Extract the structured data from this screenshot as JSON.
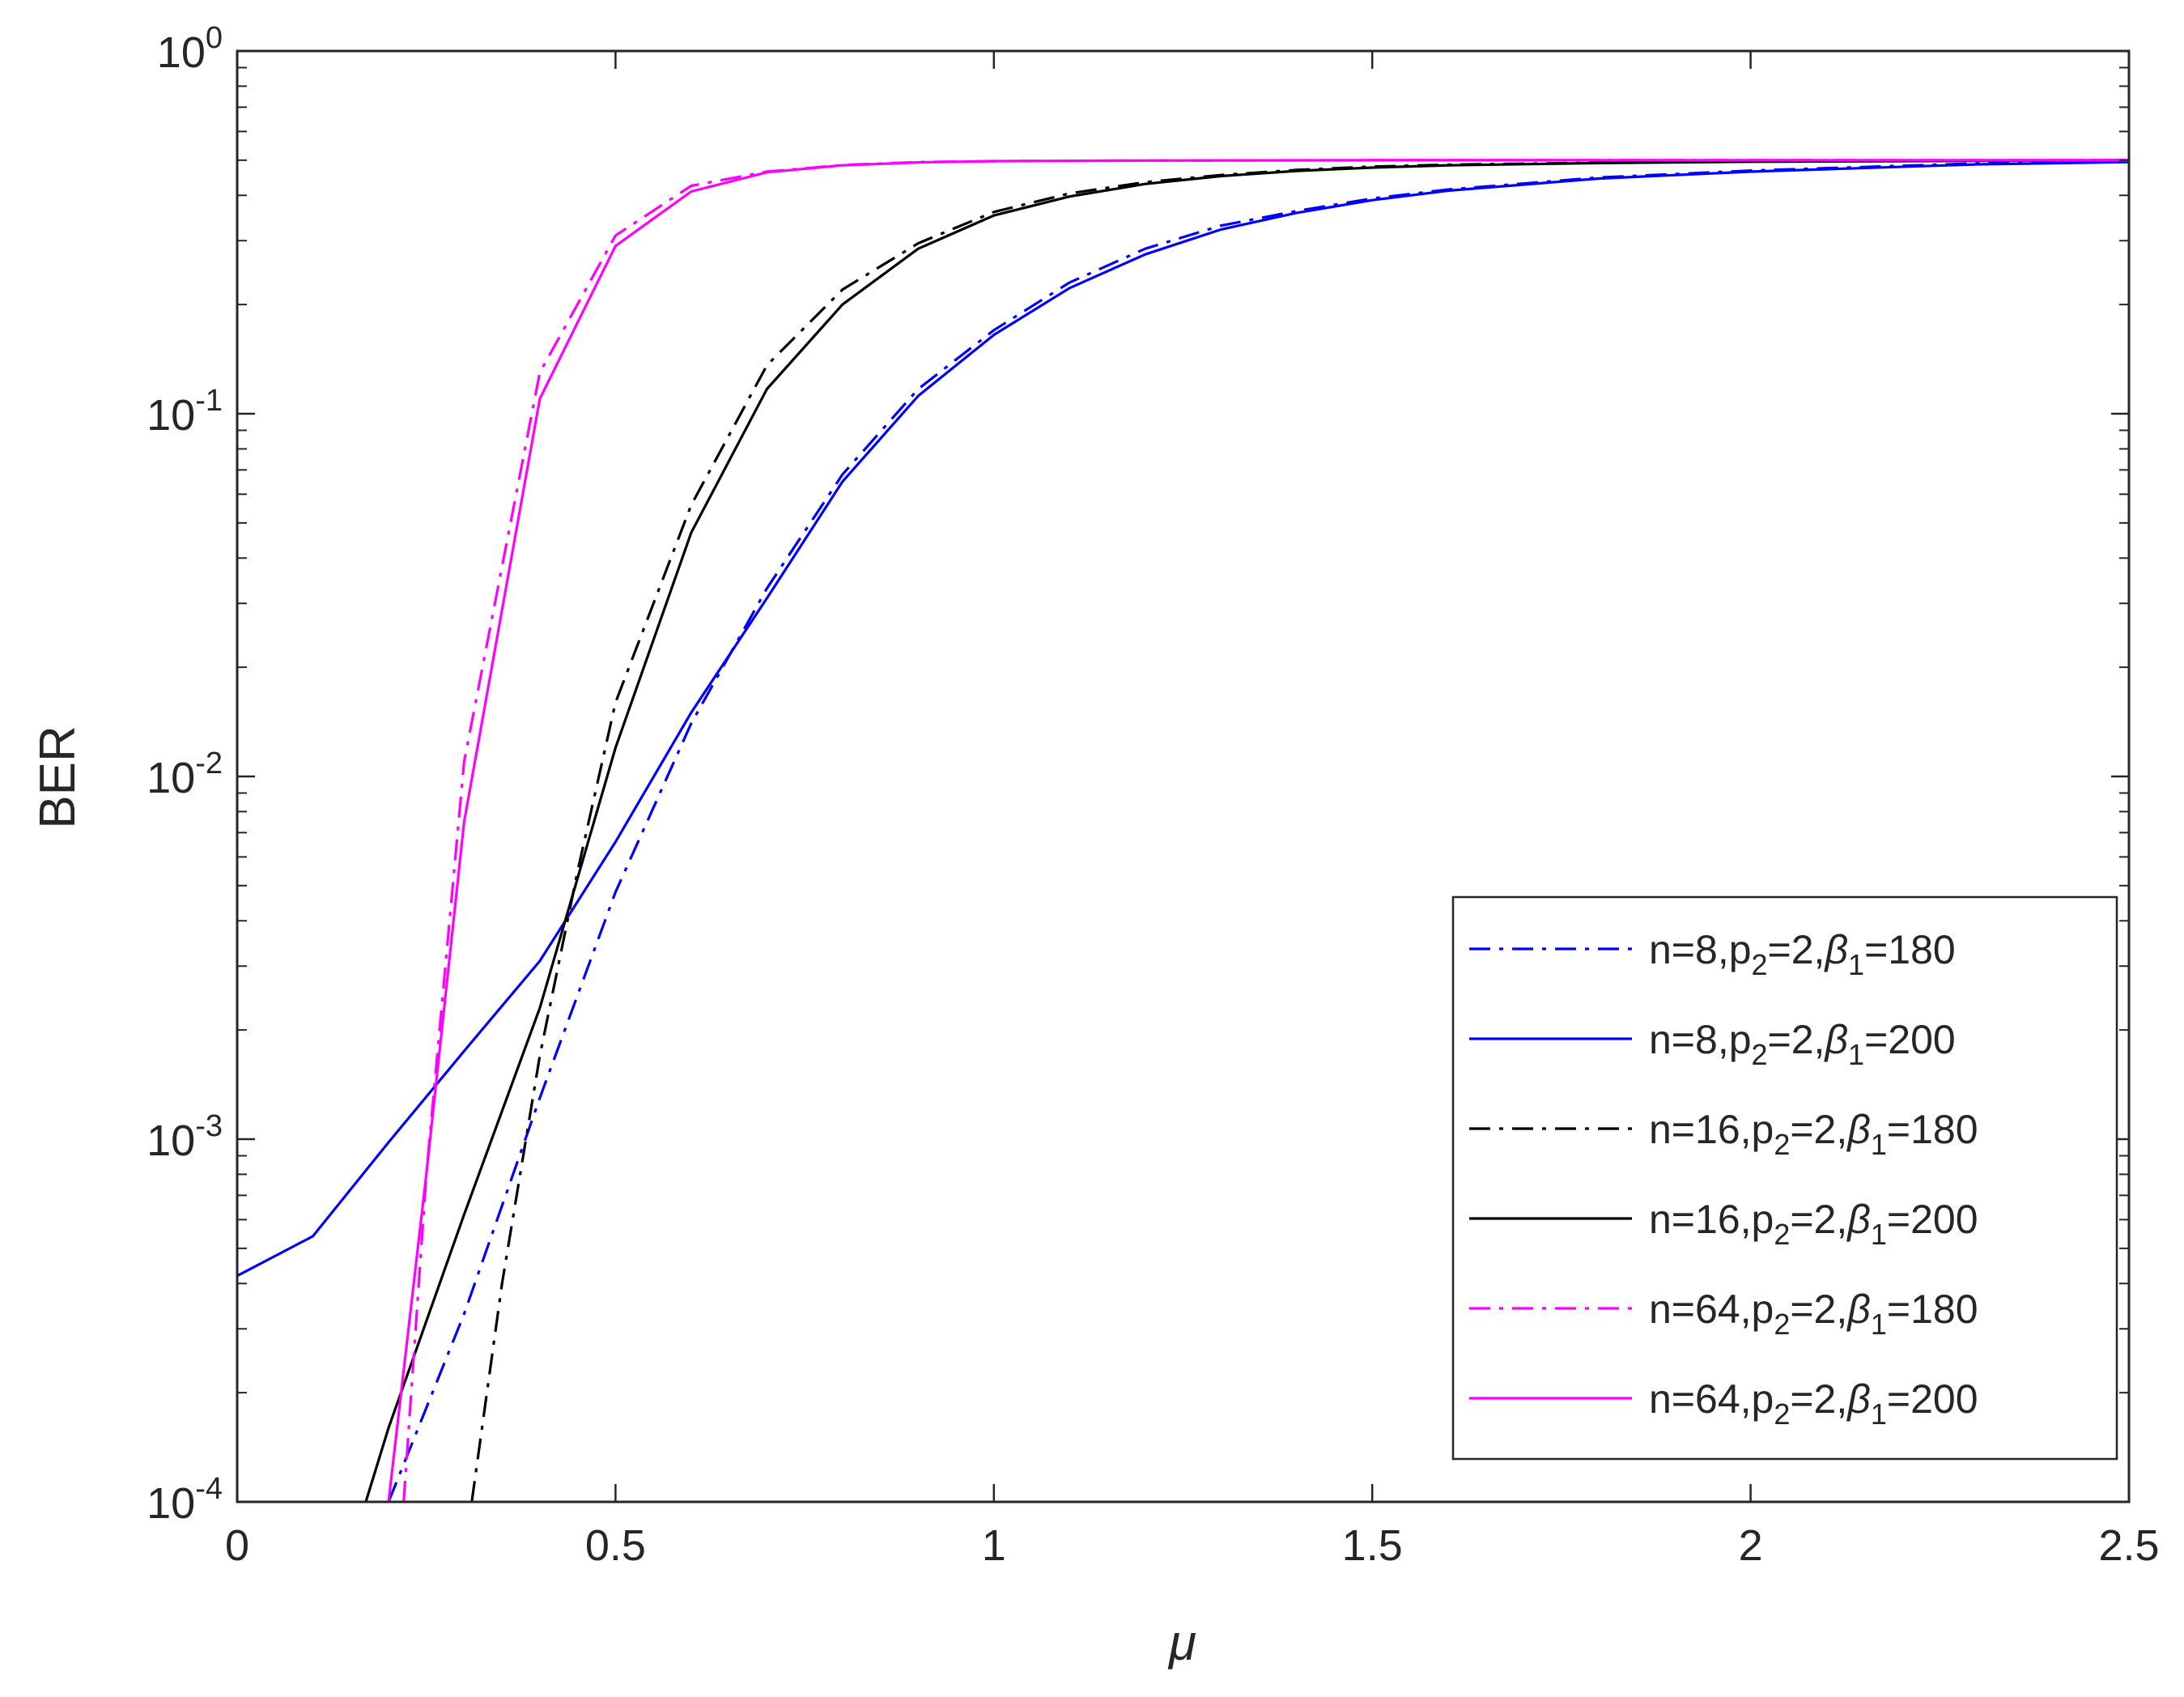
{
  "chart_data": {
    "type": "line",
    "xlabel": "μ",
    "ylabel": "BER",
    "xlim": [
      0,
      2.5
    ],
    "ylim": [
      0.0001,
      1
    ],
    "yscale": "log",
    "grid": false,
    "legend_position": "lower-right",
    "x_ticks": [
      0,
      0.5,
      1,
      1.5,
      2,
      2.5
    ],
    "x_tick_labels": [
      "0",
      "0.5",
      "1",
      "1.5",
      "2",
      "2.5"
    ],
    "y_ticks": [
      {
        "value": 0.0001,
        "base": "10",
        "exp": "-4"
      },
      {
        "value": 0.001,
        "base": "10",
        "exp": "-3"
      },
      {
        "value": 0.01,
        "base": "10",
        "exp": "-2"
      },
      {
        "value": 0.1,
        "base": "10",
        "exp": "-1"
      },
      {
        "value": 1,
        "base": "10",
        "exp": "0"
      }
    ],
    "series": [
      {
        "legend": {
          "pre": "n=8,p",
          "sub1": "2",
          "mid": "=2,",
          "beta": "β",
          "sub2": "1",
          "post": "=180"
        },
        "color": "#0000ff",
        "dash": "dashdot",
        "x": [
          0.2,
          0.3,
          0.4,
          0.5,
          0.6,
          0.7,
          0.8,
          0.9,
          1.0,
          1.1,
          1.2,
          1.3,
          1.4,
          1.5,
          1.6,
          1.8,
          2.0,
          2.3,
          2.5
        ],
        "y": [
          0.0001,
          0.00033,
          0.0013,
          0.0048,
          0.014,
          0.033,
          0.068,
          0.117,
          0.17,
          0.23,
          0.285,
          0.33,
          0.362,
          0.392,
          0.415,
          0.448,
          0.468,
          0.49,
          0.497
        ]
      },
      {
        "legend": {
          "pre": "n=8,p",
          "sub1": "2",
          "mid": "=2,",
          "beta": "β",
          "sub2": "1",
          "post": "=200"
        },
        "color": "#0000ff",
        "dash": "solid",
        "x": [
          0,
          0.1,
          0.2,
          0.3,
          0.4,
          0.5,
          0.6,
          0.7,
          0.8,
          0.9,
          1.0,
          1.1,
          1.2,
          1.3,
          1.4,
          1.5,
          1.6,
          1.8,
          2.0,
          2.3,
          2.5
        ],
        "y": [
          0.00042,
          0.00054,
          0.00098,
          0.00175,
          0.0031,
          0.0066,
          0.015,
          0.031,
          0.065,
          0.112,
          0.165,
          0.222,
          0.275,
          0.322,
          0.358,
          0.388,
          0.412,
          0.445,
          0.465,
          0.487,
          0.494
        ]
      },
      {
        "legend": {
          "pre": "n=16,p",
          "sub1": "2",
          "mid": "=2,",
          "beta": "β",
          "sub2": "1",
          "post": "=180"
        },
        "color": "#000000",
        "dash": "dashdot",
        "x": [
          0.31,
          0.35,
          0.4,
          0.45,
          0.5,
          0.6,
          0.7,
          0.8,
          0.9,
          1.0,
          1.1,
          1.2,
          1.3,
          1.4,
          1.5,
          1.6,
          1.8,
          2.0,
          2.3,
          2.5
        ],
        "y": [
          0.0001,
          0.0004,
          0.0017,
          0.0055,
          0.016,
          0.056,
          0.136,
          0.22,
          0.295,
          0.36,
          0.405,
          0.435,
          0.455,
          0.47,
          0.48,
          0.486,
          0.492,
          0.496,
          0.499,
          0.5
        ]
      },
      {
        "legend": {
          "pre": "n=16,p",
          "sub1": "2",
          "mid": "=2,",
          "beta": "β",
          "sub2": "1",
          "post": "=200"
        },
        "color": "#000000",
        "dash": "solid",
        "x": [
          0.17,
          0.2,
          0.3,
          0.4,
          0.5,
          0.6,
          0.7,
          0.8,
          0.9,
          1.0,
          1.1,
          1.2,
          1.3,
          1.4,
          1.5,
          1.6,
          1.8,
          2.0,
          2.3,
          2.5
        ],
        "y": [
          0.0001,
          0.00016,
          0.00062,
          0.0023,
          0.012,
          0.047,
          0.117,
          0.2,
          0.285,
          0.352,
          0.397,
          0.43,
          0.452,
          0.467,
          0.477,
          0.484,
          0.491,
          0.495,
          0.498,
          0.5
        ]
      },
      {
        "legend": {
          "pre": "n=64,p",
          "sub1": "2",
          "mid": "=2,",
          "beta": "β",
          "sub2": "1",
          "post": "=180"
        },
        "color": "#ff00ff",
        "dash": "dashdot",
        "x": [
          0.22,
          0.25,
          0.3,
          0.4,
          0.5,
          0.6,
          0.7,
          0.8,
          0.9,
          1.0,
          1.2,
          1.5,
          2.0,
          2.5
        ],
        "y": [
          0.0001,
          0.0008,
          0.011,
          0.13,
          0.31,
          0.425,
          0.465,
          0.485,
          0.494,
          0.497,
          0.499,
          0.5,
          0.5,
          0.5
        ]
      },
      {
        "legend": {
          "pre": "n=64,p",
          "sub1": "2",
          "mid": "=2,",
          "beta": "β",
          "sub2": "1",
          "post": "=200"
        },
        "color": "#ff00ff",
        "dash": "solid",
        "x": [
          0.2,
          0.25,
          0.3,
          0.4,
          0.5,
          0.6,
          0.7,
          0.8,
          0.9,
          1.0,
          1.2,
          1.5,
          2.0,
          2.5
        ],
        "y": [
          0.0001,
          0.0008,
          0.0075,
          0.11,
          0.29,
          0.41,
          0.463,
          0.484,
          0.493,
          0.497,
          0.499,
          0.5,
          0.5,
          0.5
        ]
      }
    ]
  }
}
